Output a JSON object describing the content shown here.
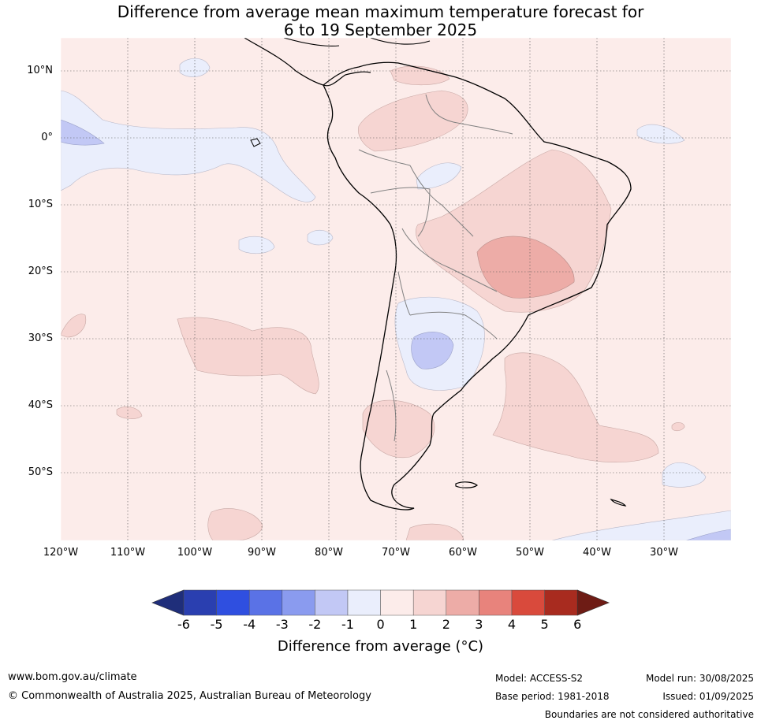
{
  "title_line1": "Difference from average mean maximum temperature forecast for",
  "title_line2": "6 to 19 September 2025",
  "lat_labels": [
    "10°N",
    "0°",
    "10°S",
    "20°S",
    "30°S",
    "40°S",
    "50°S"
  ],
  "lon_labels": [
    "120°W",
    "110°W",
    "100°W",
    "90°W",
    "80°W",
    "70°W",
    "60°W",
    "50°W",
    "40°W",
    "30°W"
  ],
  "colorbar": {
    "ticks": [
      "-6",
      "-5",
      "-4",
      "-3",
      "-2",
      "-1",
      "0",
      "1",
      "2",
      "3",
      "4",
      "5",
      "6"
    ],
    "colors": [
      "#1f2e7a",
      "#2a3fb0",
      "#2f4fe0",
      "#5a72e6",
      "#8a9bef",
      "#c2c8f5",
      "#eaeefc",
      "#fcecea",
      "#f6d5d2",
      "#edaca7",
      "#e8837c",
      "#d94a3c",
      "#a82b1f",
      "#6e1c15"
    ],
    "label": "Difference from average (°C)"
  },
  "footer": {
    "url": "www.bom.gov.au/climate",
    "copyright": "© Commonwealth of Australia 2025, Australian Bureau of Meteorology",
    "model": "Model: ACCESS-S2",
    "base_period": "Base period: 1981-2018",
    "model_run": "Model run: 30/08/2025",
    "issued": "Issued: 01/09/2025",
    "boundaries_note": "Boundaries are not considered authoritative"
  }
}
